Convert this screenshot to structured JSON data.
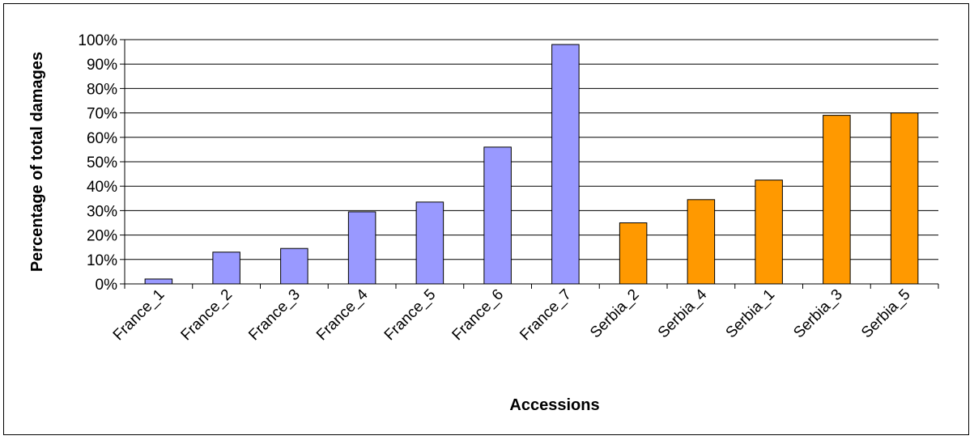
{
  "chart_data": {
    "type": "bar",
    "title": "",
    "xlabel": "Accessions",
    "ylabel": "Percentage of total damages",
    "ylim": [
      0,
      100
    ],
    "yticks": [
      "0%",
      "10%",
      "20%",
      "30%",
      "40%",
      "50%",
      "60%",
      "70%",
      "80%",
      "90%",
      "100%"
    ],
    "grid": true,
    "legend": "none",
    "categories": [
      "France_1",
      "France_2",
      "France_3",
      "France_4",
      "France_5",
      "France_6",
      "France_7",
      "Serbia_2",
      "Serbia_4",
      "Serbia_1",
      "Serbia_3",
      "Serbia_5"
    ],
    "values": [
      2,
      13,
      14.5,
      29.5,
      33.5,
      56,
      98,
      25,
      34.5,
      42.5,
      69,
      70
    ],
    "bar_colors": [
      "#9999ff",
      "#9999ff",
      "#9999ff",
      "#9999ff",
      "#9999ff",
      "#9999ff",
      "#9999ff",
      "#ff9900",
      "#ff9900",
      "#ff9900",
      "#ff9900",
      "#ff9900"
    ]
  }
}
